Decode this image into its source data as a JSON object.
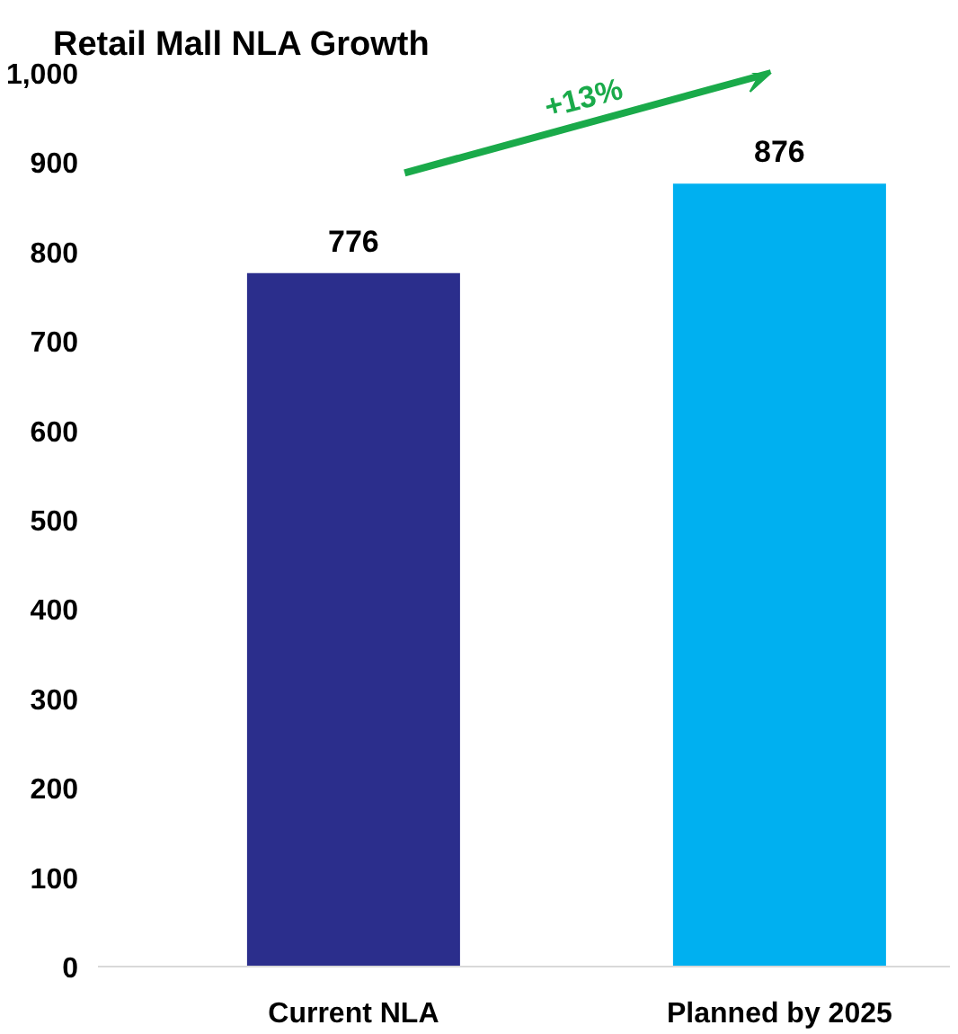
{
  "chart_data": {
    "type": "bar",
    "title": "Retail Mall NLA Growth",
    "categories": [
      "Current NLA",
      "Planned by 2025"
    ],
    "values": [
      776,
      876
    ],
    "colors": [
      "#2b2e8c",
      "#00b0f0"
    ],
    "ylim": [
      0,
      1000
    ],
    "yticks": [
      0,
      100,
      200,
      300,
      400,
      500,
      600,
      700,
      800,
      900,
      {
        "value": 1000,
        "label": "1,000"
      }
    ],
    "data_labels": true,
    "grid": false,
    "annotations": [
      "+13%"
    ]
  }
}
